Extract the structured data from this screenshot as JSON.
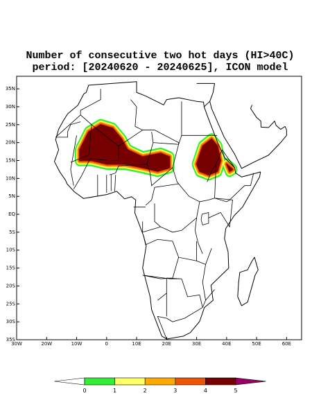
{
  "map": {
    "title": [
      "Number of consecutive two hot days (HI>40C)",
      "period: [20240620 - 20240625], ICON model"
    ],
    "xlim": [
      -30,
      65
    ],
    "ylim": [
      -35,
      38.5
    ],
    "xticks": [
      {
        "value": -30,
        "label": "30W"
      },
      {
        "value": -20,
        "label": "20W"
      },
      {
        "value": -10,
        "label": "10W"
      },
      0,
      {
        "value": 10,
        "label": "10E"
      },
      {
        "value": 20,
        "label": "20E"
      },
      {
        "value": 30,
        "label": "30E"
      },
      {
        "value": 40,
        "label": "40E"
      },
      {
        "value": 50,
        "label": "50E"
      },
      {
        "value": 60,
        "label": "60E"
      }
    ],
    "yticks": [
      {
        "value": 35,
        "label": "35N"
      },
      {
        "value": 30,
        "label": "30N"
      },
      {
        "value": 25,
        "label": "25N"
      },
      {
        "value": 20,
        "label": "20N"
      },
      {
        "value": 15,
        "label": "15N"
      },
      {
        "value": 10,
        "label": "10N"
      },
      {
        "value": 5,
        "label": "5N"
      },
      {
        "value": 0,
        "label": "EQ"
      },
      {
        "value": -5,
        "label": "5S"
      },
      {
        "value": -10,
        "label": "10S"
      },
      {
        "value": -15,
        "label": "15S"
      },
      {
        "value": -20,
        "label": "20S"
      },
      {
        "value": -25,
        "label": "25S"
      },
      {
        "value": -30,
        "label": "30S"
      },
      {
        "value": -35,
        "label": "35S"
      }
    ],
    "colorbar": {
      "levels": [
        0,
        1,
        2,
        3,
        4,
        5
      ],
      "colors": [
        "#ffffff",
        "#33ee33",
        "#ffff66",
        "#ffaa00",
        "#ee5500",
        "#770000",
        "#990066"
      ]
    }
  }
}
